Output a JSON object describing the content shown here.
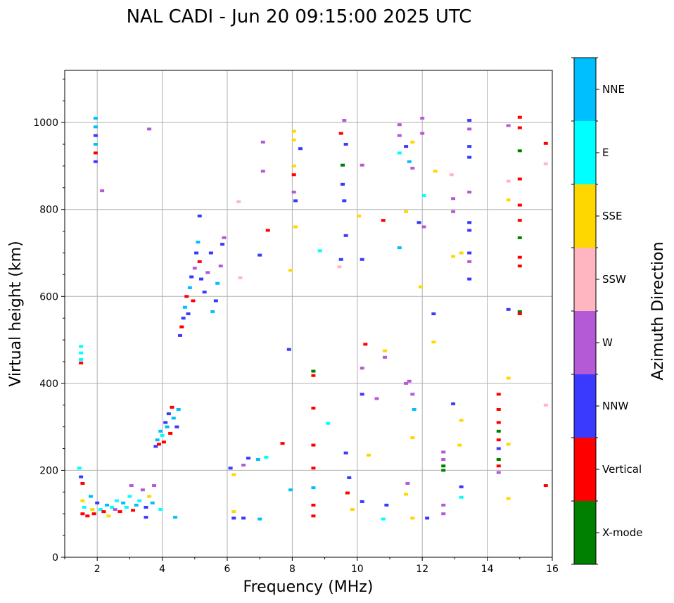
{
  "chart_data": {
    "type": "scatter",
    "title": "NAL CADI - Jun 20 09:15:00 2025 UTC",
    "xlabel": "Frequency (MHz)",
    "ylabel": "Virtual height (km)",
    "xlim": [
      1,
      16
    ],
    "ylim": [
      0,
      1120
    ],
    "xticks": [
      2,
      4,
      6,
      8,
      10,
      12,
      14,
      16
    ],
    "yticks": [
      0,
      200,
      400,
      600,
      800,
      1000
    ],
    "grid": true,
    "colorbar": {
      "label": "Azimuth Direction",
      "categories": [
        {
          "name": "X-mode",
          "color": "#008000"
        },
        {
          "name": "Vertical",
          "color": "#ff0000"
        },
        {
          "name": "NNW",
          "color": "#3a3aff"
        },
        {
          "name": "W",
          "color": "#b55ad6"
        },
        {
          "name": "SSW",
          "color": "#ffb6c1"
        },
        {
          "name": "SSE",
          "color": "#ffd700"
        },
        {
          "name": "E",
          "color": "#00ffff"
        },
        {
          "name": "NNE",
          "color": "#00bfff"
        }
      ]
    },
    "echoes": [
      {
        "f": 1.95,
        "h": 1010,
        "d": "NNE"
      },
      {
        "f": 1.95,
        "h": 990,
        "d": "NNE"
      },
      {
        "f": 1.95,
        "h": 970,
        "d": "NNW"
      },
      {
        "f": 1.95,
        "h": 950,
        "d": "NNE"
      },
      {
        "f": 1.95,
        "h": 930,
        "d": "Vertical"
      },
      {
        "f": 1.95,
        "h": 910,
        "d": "NNW"
      },
      {
        "f": 2.15,
        "h": 843,
        "d": "W"
      },
      {
        "f": 3.6,
        "h": 985,
        "d": "W"
      },
      {
        "f": 1.5,
        "h": 485,
        "d": "E"
      },
      {
        "f": 1.5,
        "h": 470,
        "d": "E"
      },
      {
        "f": 1.5,
        "h": 455,
        "d": "E"
      },
      {
        "f": 1.5,
        "h": 447,
        "d": "Vertical"
      },
      {
        "f": 1.45,
        "h": 205,
        "d": "E"
      },
      {
        "f": 1.5,
        "h": 185,
        "d": "NNW"
      },
      {
        "f": 1.55,
        "h": 170,
        "d": "Vertical"
      },
      {
        "f": 1.55,
        "h": 130,
        "d": "SSE"
      },
      {
        "f": 1.6,
        "h": 115,
        "d": "E"
      },
      {
        "f": 1.55,
        "h": 100,
        "d": "Vertical"
      },
      {
        "f": 1.7,
        "h": 95,
        "d": "Vertical"
      },
      {
        "f": 1.8,
        "h": 140,
        "d": "NNE"
      },
      {
        "f": 1.85,
        "h": 110,
        "d": "SSE"
      },
      {
        "f": 1.9,
        "h": 100,
        "d": "Vertical"
      },
      {
        "f": 2.0,
        "h": 125,
        "d": "NNW"
      },
      {
        "f": 2.1,
        "h": 110,
        "d": "E"
      },
      {
        "f": 2.2,
        "h": 105,
        "d": "Vertical"
      },
      {
        "f": 2.3,
        "h": 120,
        "d": "NNE"
      },
      {
        "f": 2.35,
        "h": 95,
        "d": "SSE"
      },
      {
        "f": 2.45,
        "h": 115,
        "d": "E"
      },
      {
        "f": 2.55,
        "h": 110,
        "d": "W"
      },
      {
        "f": 2.6,
        "h": 130,
        "d": "E"
      },
      {
        "f": 2.7,
        "h": 105,
        "d": "Vertical"
      },
      {
        "f": 2.8,
        "h": 125,
        "d": "NNE"
      },
      {
        "f": 2.9,
        "h": 115,
        "d": "E"
      },
      {
        "f": 3.0,
        "h": 140,
        "d": "E"
      },
      {
        "f": 3.05,
        "h": 165,
        "d": "W"
      },
      {
        "f": 3.1,
        "h": 108,
        "d": "Vertical"
      },
      {
        "f": 3.2,
        "h": 120,
        "d": "NNE"
      },
      {
        "f": 3.3,
        "h": 130,
        "d": "E"
      },
      {
        "f": 3.4,
        "h": 155,
        "d": "W"
      },
      {
        "f": 3.5,
        "h": 115,
        "d": "NNW"
      },
      {
        "f": 3.6,
        "h": 140,
        "d": "SSE"
      },
      {
        "f": 3.7,
        "h": 125,
        "d": "NNE"
      },
      {
        "f": 3.75,
        "h": 165,
        "d": "W"
      },
      {
        "f": 3.5,
        "h": 92,
        "d": "NNW"
      },
      {
        "f": 3.95,
        "h": 110,
        "d": "E"
      },
      {
        "f": 4.4,
        "h": 92,
        "d": "NNE"
      },
      {
        "f": 3.8,
        "h": 255,
        "d": "NNW"
      },
      {
        "f": 3.85,
        "h": 270,
        "d": "NNE"
      },
      {
        "f": 3.9,
        "h": 260,
        "d": "Vertical"
      },
      {
        "f": 3.95,
        "h": 290,
        "d": "NNE"
      },
      {
        "f": 4.0,
        "h": 280,
        "d": "E"
      },
      {
        "f": 4.05,
        "h": 265,
        "d": "Vertical"
      },
      {
        "f": 4.1,
        "h": 310,
        "d": "NNW"
      },
      {
        "f": 4.15,
        "h": 300,
        "d": "NNE"
      },
      {
        "f": 4.2,
        "h": 330,
        "d": "NNW"
      },
      {
        "f": 4.25,
        "h": 285,
        "d": "Vertical"
      },
      {
        "f": 4.3,
        "h": 345,
        "d": "Vertical"
      },
      {
        "f": 4.35,
        "h": 320,
        "d": "NNE"
      },
      {
        "f": 4.45,
        "h": 300,
        "d": "NNW"
      },
      {
        "f": 4.5,
        "h": 340,
        "d": "NNE"
      },
      {
        "f": 4.55,
        "h": 510,
        "d": "NNW"
      },
      {
        "f": 4.6,
        "h": 530,
        "d": "Vertical"
      },
      {
        "f": 4.65,
        "h": 550,
        "d": "NNW"
      },
      {
        "f": 4.7,
        "h": 575,
        "d": "NNE"
      },
      {
        "f": 4.75,
        "h": 600,
        "d": "Vertical"
      },
      {
        "f": 4.8,
        "h": 560,
        "d": "NNW"
      },
      {
        "f": 4.85,
        "h": 620,
        "d": "NNE"
      },
      {
        "f": 4.9,
        "h": 645,
        "d": "NNW"
      },
      {
        "f": 4.95,
        "h": 590,
        "d": "Vertical"
      },
      {
        "f": 5.0,
        "h": 665,
        "d": "W"
      },
      {
        "f": 5.05,
        "h": 700,
        "d": "NNW"
      },
      {
        "f": 5.1,
        "h": 725,
        "d": "NNE"
      },
      {
        "f": 5.15,
        "h": 680,
        "d": "Vertical"
      },
      {
        "f": 5.2,
        "h": 640,
        "d": "NNW"
      },
      {
        "f": 5.15,
        "h": 785,
        "d": "NNW"
      },
      {
        "f": 5.3,
        "h": 610,
        "d": "NNW"
      },
      {
        "f": 5.4,
        "h": 655,
        "d": "W"
      },
      {
        "f": 5.5,
        "h": 700,
        "d": "NNW"
      },
      {
        "f": 5.55,
        "h": 565,
        "d": "NNE"
      },
      {
        "f": 5.65,
        "h": 590,
        "d": "NNW"
      },
      {
        "f": 5.7,
        "h": 630,
        "d": "NNE"
      },
      {
        "f": 5.8,
        "h": 670,
        "d": "W"
      },
      {
        "f": 5.85,
        "h": 720,
        "d": "NNW"
      },
      {
        "f": 5.9,
        "h": 735,
        "d": "W"
      },
      {
        "f": 6.1,
        "h": 205,
        "d": "NNW"
      },
      {
        "f": 6.2,
        "h": 190,
        "d": "SSE"
      },
      {
        "f": 6.2,
        "h": 105,
        "d": "SSE"
      },
      {
        "f": 6.2,
        "h": 90,
        "d": "NNW"
      },
      {
        "f": 6.5,
        "h": 90,
        "d": "NNW"
      },
      {
        "f": 6.5,
        "h": 212,
        "d": "W"
      },
      {
        "f": 6.65,
        "h": 228,
        "d": "NNW"
      },
      {
        "f": 6.95,
        "h": 225,
        "d": "NNE"
      },
      {
        "f": 7.0,
        "h": 88,
        "d": "NNE"
      },
      {
        "f": 7.2,
        "h": 230,
        "d": "E"
      },
      {
        "f": 6.4,
        "h": 643,
        "d": "SSW"
      },
      {
        "f": 6.35,
        "h": 818,
        "d": "SSW"
      },
      {
        "f": 7.0,
        "h": 695,
        "d": "NNW"
      },
      {
        "f": 7.25,
        "h": 752,
        "d": "Vertical"
      },
      {
        "f": 7.1,
        "h": 955,
        "d": "W"
      },
      {
        "f": 7.1,
        "h": 888,
        "d": "W"
      },
      {
        "f": 7.7,
        "h": 262,
        "d": "Vertical"
      },
      {
        "f": 7.9,
        "h": 478,
        "d": "NNW"
      },
      {
        "f": 7.95,
        "h": 660,
        "d": "SSE"
      },
      {
        "f": 7.95,
        "h": 155,
        "d": "NNE"
      },
      {
        "f": 8.05,
        "h": 980,
        "d": "SSE"
      },
      {
        "f": 8.05,
        "h": 960,
        "d": "SSE"
      },
      {
        "f": 8.05,
        "h": 900,
        "d": "SSE"
      },
      {
        "f": 8.05,
        "h": 880,
        "d": "Vertical"
      },
      {
        "f": 8.05,
        "h": 840,
        "d": "W"
      },
      {
        "f": 8.1,
        "h": 820,
        "d": "NNW"
      },
      {
        "f": 8.1,
        "h": 760,
        "d": "SSE"
      },
      {
        "f": 8.25,
        "h": 940,
        "d": "NNW"
      },
      {
        "f": 8.65,
        "h": 428,
        "d": "X-mode"
      },
      {
        "f": 8.65,
        "h": 418,
        "d": "Vertical"
      },
      {
        "f": 8.65,
        "h": 343,
        "d": "Vertical"
      },
      {
        "f": 8.65,
        "h": 258,
        "d": "Vertical"
      },
      {
        "f": 8.65,
        "h": 205,
        "d": "Vertical"
      },
      {
        "f": 8.65,
        "h": 160,
        "d": "NNE"
      },
      {
        "f": 8.65,
        "h": 120,
        "d": "Vertical"
      },
      {
        "f": 8.65,
        "h": 95,
        "d": "Vertical"
      },
      {
        "f": 8.85,
        "h": 705,
        "d": "E"
      },
      {
        "f": 9.1,
        "h": 308,
        "d": "E"
      },
      {
        "f": 9.5,
        "h": 975,
        "d": "Vertical"
      },
      {
        "f": 9.55,
        "h": 902,
        "d": "X-mode"
      },
      {
        "f": 9.55,
        "h": 858,
        "d": "NNW"
      },
      {
        "f": 9.6,
        "h": 1005,
        "d": "W"
      },
      {
        "f": 9.65,
        "h": 950,
        "d": "NNW"
      },
      {
        "f": 9.6,
        "h": 820,
        "d": "NNW"
      },
      {
        "f": 9.65,
        "h": 740,
        "d": "NNW"
      },
      {
        "f": 9.5,
        "h": 685,
        "d": "NNW"
      },
      {
        "f": 9.45,
        "h": 668,
        "d": "SSW"
      },
      {
        "f": 9.65,
        "h": 240,
        "d": "NNW"
      },
      {
        "f": 9.75,
        "h": 183,
        "d": "NNW"
      },
      {
        "f": 9.7,
        "h": 148,
        "d": "Vertical"
      },
      {
        "f": 9.85,
        "h": 110,
        "d": "SSE"
      },
      {
        "f": 10.15,
        "h": 902,
        "d": "W"
      },
      {
        "f": 10.15,
        "h": 685,
        "d": "NNW"
      },
      {
        "f": 10.05,
        "h": 785,
        "d": "SSE"
      },
      {
        "f": 10.15,
        "h": 435,
        "d": "W"
      },
      {
        "f": 10.15,
        "h": 375,
        "d": "NNW"
      },
      {
        "f": 10.25,
        "h": 490,
        "d": "Vertical"
      },
      {
        "f": 10.35,
        "h": 235,
        "d": "SSE"
      },
      {
        "f": 10.15,
        "h": 128,
        "d": "NNW"
      },
      {
        "f": 10.6,
        "h": 365,
        "d": "W"
      },
      {
        "f": 10.8,
        "h": 775,
        "d": "Vertical"
      },
      {
        "f": 10.85,
        "h": 475,
        "d": "SSE"
      },
      {
        "f": 10.85,
        "h": 460,
        "d": "W"
      },
      {
        "f": 10.9,
        "h": 120,
        "d": "NNW"
      },
      {
        "f": 10.8,
        "h": 88,
        "d": "E"
      },
      {
        "f": 11.3,
        "h": 995,
        "d": "W"
      },
      {
        "f": 11.3,
        "h": 970,
        "d": "W"
      },
      {
        "f": 11.3,
        "h": 930,
        "d": "E"
      },
      {
        "f": 11.5,
        "h": 945,
        "d": "NNW"
      },
      {
        "f": 11.7,
        "h": 955,
        "d": "SSE"
      },
      {
        "f": 11.6,
        "h": 910,
        "d": "NNE"
      },
      {
        "f": 11.7,
        "h": 895,
        "d": "W"
      },
      {
        "f": 11.3,
        "h": 712,
        "d": "NNE"
      },
      {
        "f": 11.5,
        "h": 795,
        "d": "SSE"
      },
      {
        "f": 11.5,
        "h": 400,
        "d": "W"
      },
      {
        "f": 11.6,
        "h": 405,
        "d": "W"
      },
      {
        "f": 11.7,
        "h": 375,
        "d": "W"
      },
      {
        "f": 11.75,
        "h": 340,
        "d": "NNE"
      },
      {
        "f": 11.7,
        "h": 275,
        "d": "SSE"
      },
      {
        "f": 11.55,
        "h": 170,
        "d": "W"
      },
      {
        "f": 11.5,
        "h": 145,
        "d": "SSE"
      },
      {
        "f": 11.7,
        "h": 90,
        "d": "SSE"
      },
      {
        "f": 12.0,
        "h": 1010,
        "d": "W"
      },
      {
        "f": 12.0,
        "h": 975,
        "d": "W"
      },
      {
        "f": 12.05,
        "h": 832,
        "d": "E"
      },
      {
        "f": 12.05,
        "h": 760,
        "d": "W"
      },
      {
        "f": 11.9,
        "h": 770,
        "d": "NNW"
      },
      {
        "f": 11.95,
        "h": 622,
        "d": "SSE"
      },
      {
        "f": 12.15,
        "h": 90,
        "d": "NNW"
      },
      {
        "f": 12.35,
        "h": 560,
        "d": "NNW"
      },
      {
        "f": 12.35,
        "h": 495,
        "d": "SSE"
      },
      {
        "f": 12.4,
        "h": 888,
        "d": "SSE"
      },
      {
        "f": 12.65,
        "h": 242,
        "d": "W"
      },
      {
        "f": 12.65,
        "h": 225,
        "d": "W"
      },
      {
        "f": 12.65,
        "h": 210,
        "d": "X-mode"
      },
      {
        "f": 12.65,
        "h": 200,
        "d": "X-mode"
      },
      {
        "f": 12.65,
        "h": 120,
        "d": "W"
      },
      {
        "f": 12.65,
        "h": 100,
        "d": "W"
      },
      {
        "f": 12.9,
        "h": 880,
        "d": "SSW"
      },
      {
        "f": 12.95,
        "h": 825,
        "d": "W"
      },
      {
        "f": 12.95,
        "h": 795,
        "d": "W"
      },
      {
        "f": 12.95,
        "h": 692,
        "d": "SSE"
      },
      {
        "f": 12.95,
        "h": 353,
        "d": "NNW"
      },
      {
        "f": 13.2,
        "h": 700,
        "d": "SSE"
      },
      {
        "f": 13.2,
        "h": 315,
        "d": "SSE"
      },
      {
        "f": 13.15,
        "h": 258,
        "d": "SSE"
      },
      {
        "f": 13.2,
        "h": 162,
        "d": "NNW"
      },
      {
        "f": 13.2,
        "h": 138,
        "d": "E"
      },
      {
        "f": 13.45,
        "h": 1005,
        "d": "NNW"
      },
      {
        "f": 13.45,
        "h": 985,
        "d": "W"
      },
      {
        "f": 13.45,
        "h": 945,
        "d": "NNW"
      },
      {
        "f": 13.45,
        "h": 920,
        "d": "NNW"
      },
      {
        "f": 13.45,
        "h": 840,
        "d": "W"
      },
      {
        "f": 13.45,
        "h": 770,
        "d": "NNW"
      },
      {
        "f": 13.45,
        "h": 752,
        "d": "NNW"
      },
      {
        "f": 13.45,
        "h": 700,
        "d": "NNW"
      },
      {
        "f": 13.45,
        "h": 680,
        "d": "W"
      },
      {
        "f": 13.45,
        "h": 640,
        "d": "NNW"
      },
      {
        "f": 14.35,
        "h": 375,
        "d": "Vertical"
      },
      {
        "f": 14.35,
        "h": 340,
        "d": "Vertical"
      },
      {
        "f": 14.35,
        "h": 310,
        "d": "Vertical"
      },
      {
        "f": 14.35,
        "h": 290,
        "d": "X-mode"
      },
      {
        "f": 14.35,
        "h": 270,
        "d": "Vertical"
      },
      {
        "f": 14.35,
        "h": 250,
        "d": "NNW"
      },
      {
        "f": 14.35,
        "h": 225,
        "d": "X-mode"
      },
      {
        "f": 14.35,
        "h": 210,
        "d": "Vertical"
      },
      {
        "f": 14.35,
        "h": 195,
        "d": "W"
      },
      {
        "f": 14.65,
        "h": 993,
        "d": "W"
      },
      {
        "f": 14.65,
        "h": 865,
        "d": "SSW"
      },
      {
        "f": 14.65,
        "h": 822,
        "d": "SSE"
      },
      {
        "f": 14.65,
        "h": 570,
        "d": "NNW"
      },
      {
        "f": 14.65,
        "h": 412,
        "d": "SSE"
      },
      {
        "f": 14.65,
        "h": 260,
        "d": "SSE"
      },
      {
        "f": 14.65,
        "h": 135,
        "d": "SSE"
      },
      {
        "f": 15.0,
        "h": 1012,
        "d": "Vertical"
      },
      {
        "f": 15.0,
        "h": 988,
        "d": "Vertical"
      },
      {
        "f": 15.0,
        "h": 935,
        "d": "X-mode"
      },
      {
        "f": 15.0,
        "h": 870,
        "d": "Vertical"
      },
      {
        "f": 15.0,
        "h": 810,
        "d": "Vertical"
      },
      {
        "f": 15.0,
        "h": 775,
        "d": "Vertical"
      },
      {
        "f": 15.0,
        "h": 735,
        "d": "X-mode"
      },
      {
        "f": 15.0,
        "h": 690,
        "d": "Vertical"
      },
      {
        "f": 15.0,
        "h": 670,
        "d": "Vertical"
      },
      {
        "f": 15.0,
        "h": 565,
        "d": "X-mode"
      },
      {
        "f": 15.0,
        "h": 560,
        "d": "Vertical"
      },
      {
        "f": 15.8,
        "h": 952,
        "d": "Vertical"
      },
      {
        "f": 15.8,
        "h": 905,
        "d": "SSW"
      },
      {
        "f": 15.8,
        "h": 350,
        "d": "SSW"
      },
      {
        "f": 15.8,
        "h": 165,
        "d": "Vertical"
      }
    ]
  }
}
